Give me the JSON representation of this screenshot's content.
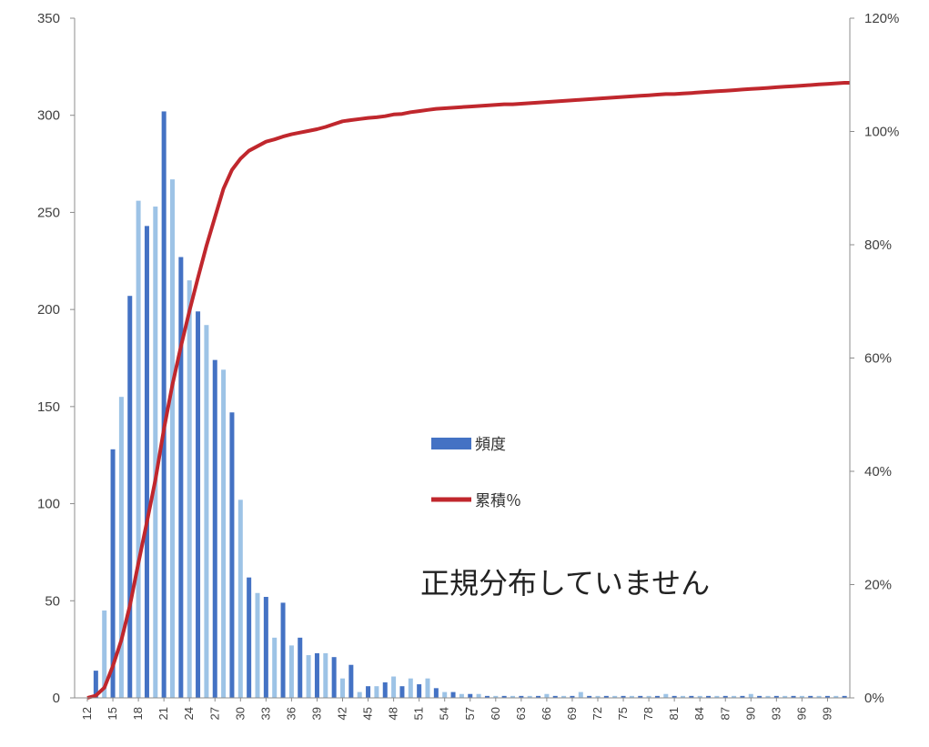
{
  "chart_data": {
    "type": "bar",
    "title": "",
    "xlabel": "",
    "ylabel": "",
    "y_left_lim": [
      0,
      350
    ],
    "y_left_ticks": [
      "0",
      "50",
      "100",
      "150",
      "200",
      "250",
      "300",
      "350"
    ],
    "y_right_lim": [
      0,
      1.2
    ],
    "y_right_ticks": [
      "0%",
      "20%",
      "40%",
      "60%",
      "80%",
      "100%",
      "120%"
    ],
    "x_tick_labels": [
      "12",
      "15",
      "18",
      "21",
      "24",
      "27",
      "30",
      "33",
      "36",
      "39",
      "42",
      "45",
      "48",
      "51",
      "54",
      "57",
      "60",
      "63",
      "66",
      "69",
      "72",
      "75",
      "78",
      "81",
      "84",
      "87",
      "90",
      "93",
      "96",
      "99"
    ],
    "x_tick_start": 12,
    "x_tick_step": 3,
    "categories": [
      12,
      13,
      14,
      15,
      16,
      17,
      18,
      19,
      20,
      21,
      22,
      23,
      24,
      25,
      26,
      27,
      28,
      29,
      30,
      31,
      32,
      33,
      34,
      35,
      36,
      37,
      38,
      39,
      40,
      41,
      42,
      43,
      44,
      45,
      46,
      47,
      48,
      49,
      50,
      51,
      52,
      53,
      54,
      55,
      56,
      57,
      58,
      59,
      60,
      61,
      62,
      63,
      64,
      65,
      66,
      67,
      68,
      69,
      70,
      71,
      72,
      73,
      74,
      75,
      76,
      77,
      78,
      79,
      80,
      81,
      82,
      83,
      84,
      85,
      86,
      87,
      88,
      89,
      90,
      91,
      92,
      93,
      94,
      95,
      96,
      97,
      98,
      99,
      100,
      101
    ],
    "series": [
      {
        "name": "頻度",
        "kind": "bar",
        "axis": "left",
        "color": "#4472c4",
        "color_alt": "#9dc3e6",
        "values": [
          0,
          14,
          45,
          128,
          155,
          207,
          256,
          243,
          253,
          302,
          267,
          227,
          215,
          199,
          192,
          174,
          169,
          147,
          102,
          62,
          54,
          52,
          31,
          49,
          27,
          31,
          22,
          23,
          23,
          21,
          10,
          17,
          3,
          6,
          6,
          8,
          11,
          6,
          10,
          7,
          10,
          5,
          3,
          3,
          2,
          2,
          2,
          1,
          1,
          1,
          1,
          1,
          1,
          1,
          2,
          1,
          1,
          1,
          3,
          1,
          1,
          1,
          1,
          1,
          1,
          1,
          1,
          1,
          2,
          1,
          1,
          1,
          1,
          1,
          1,
          1,
          1,
          1,
          2,
          1,
          1,
          1,
          1,
          1,
          1,
          1,
          1,
          1,
          1,
          1
        ]
      },
      {
        "name": "累積％",
        "kind": "line",
        "axis": "right",
        "color": "#c0272d",
        "values": [
          0.0,
          0.004,
          0.018,
          0.056,
          0.102,
          0.163,
          0.238,
          0.31,
          0.385,
          0.474,
          0.553,
          0.62,
          0.683,
          0.742,
          0.798,
          0.849,
          0.899,
          0.932,
          0.952,
          0.966,
          0.974,
          0.982,
          0.986,
          0.991,
          0.995,
          0.998,
          1.001,
          1.004,
          1.008,
          1.013,
          1.018,
          1.02,
          1.022,
          1.024,
          1.025,
          1.027,
          1.03,
          1.031,
          1.034,
          1.036,
          1.038,
          1.04,
          1.041,
          1.042,
          1.043,
          1.044,
          1.045,
          1.046,
          1.047,
          1.048,
          1.048,
          1.049,
          1.05,
          1.051,
          1.052,
          1.053,
          1.054,
          1.055,
          1.056,
          1.057,
          1.058,
          1.059,
          1.06,
          1.061,
          1.062,
          1.063,
          1.064,
          1.065,
          1.066,
          1.066,
          1.067,
          1.068,
          1.069,
          1.07,
          1.071,
          1.072,
          1.073,
          1.074,
          1.075,
          1.076,
          1.077,
          1.078,
          1.079,
          1.08,
          1.081,
          1.082,
          1.083,
          1.084,
          1.085,
          1.086
        ]
      }
    ],
    "legend": [
      "頻度",
      "累積％"
    ],
    "legend_position": "middle-right",
    "annotation": "正規分布していません",
    "grid": false
  }
}
